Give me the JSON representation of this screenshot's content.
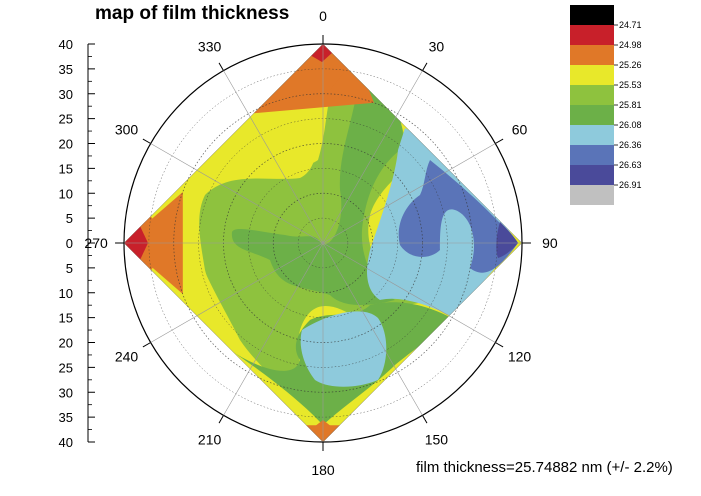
{
  "chart_data": {
    "type": "heatmap",
    "title": "map of film thickness",
    "footer": "film thickness=25.74882 nm (+/- 2.2%)",
    "radial_axis": {
      "range": [
        0,
        40
      ],
      "ticks": [
        "40",
        "35",
        "30",
        "25",
        "20",
        "15",
        "10",
        "5",
        "0",
        "5",
        "10",
        "15",
        "20",
        "25",
        "30",
        "35",
        "40"
      ]
    },
    "angular_axis": {
      "direction": "clockwise",
      "zero": "top",
      "ticks": [
        0,
        30,
        60,
        90,
        120,
        150,
        180,
        210,
        240,
        270,
        300,
        330
      ]
    },
    "grid": true,
    "legend": {
      "placement": "top-right",
      "levels": [
        "24.71",
        "24.98",
        "25.26",
        "25.53",
        "25.81",
        "26.08",
        "26.36",
        "26.63",
        "26.91"
      ],
      "colors": [
        "#000000",
        "#c8202a",
        "#e07828",
        "#e8e82a",
        "#8ec23e",
        "#6cb048",
        "#8ecadc",
        "#5a74b8",
        "#4a4a9a",
        "#c0c0c0"
      ]
    },
    "sample_boundary_corners_deg_r": [
      [
        0,
        40
      ],
      [
        90,
        40
      ],
      [
        180,
        40
      ],
      [
        270,
        40
      ]
    ],
    "regions": [
      {
        "color_index": 1,
        "label": "24.71-24.98",
        "points": [
          [
            0,
            40
          ],
          [
            10,
            40
          ],
          [
            355,
            38
          ]
        ]
      },
      {
        "color_index": 2,
        "label": "24.98-25.26",
        "points": [
          [
            0,
            40
          ],
          [
            12,
            36
          ],
          [
            20,
            30
          ],
          [
            330,
            30
          ],
          [
            345,
            36
          ]
        ]
      },
      {
        "color_index": 1,
        "label": "24.71-24.98",
        "points": [
          [
            270,
            40
          ],
          [
            262,
            36
          ],
          [
            278,
            36
          ]
        ]
      },
      {
        "color_index": 2,
        "label": "24.98-25.26",
        "points": [
          [
            270,
            40
          ],
          [
            250,
            30
          ],
          [
            290,
            30
          ]
        ]
      },
      {
        "color_index": 2,
        "label": "24.98-25.26",
        "points": [
          [
            180,
            40
          ],
          [
            172,
            37
          ],
          [
            188,
            37
          ]
        ]
      }
    ]
  }
}
